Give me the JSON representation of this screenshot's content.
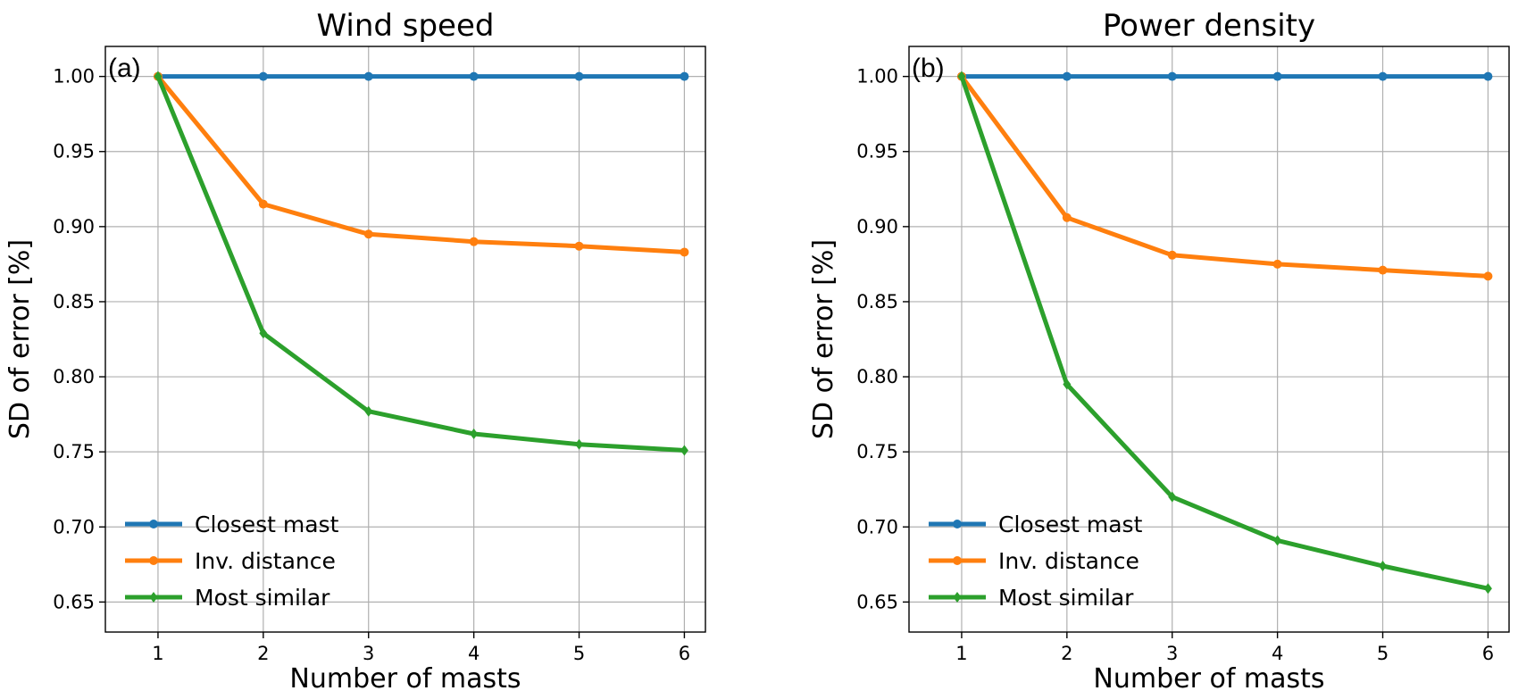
{
  "chart_data": [
    {
      "type": "line",
      "panel_label": "(a)",
      "title": "Wind speed",
      "xlabel": "Number of masts",
      "ylabel": "SD of error [%]",
      "x": [
        1,
        2,
        3,
        4,
        5,
        6
      ],
      "xlim": [
        0.5,
        6.2
      ],
      "ylim": [
        0.63,
        1.02
      ],
      "xticks": [
        "1",
        "2",
        "3",
        "4",
        "5",
        "6"
      ],
      "yticks": [
        "0.65",
        "0.70",
        "0.75",
        "0.80",
        "0.85",
        "0.90",
        "0.95",
        "1.00"
      ],
      "grid": true,
      "legend_position": "lower-left",
      "series": [
        {
          "name": "Closest mast",
          "color": "#1f77b4",
          "values": [
            1.0,
            1.0,
            1.0,
            1.0,
            1.0,
            1.0
          ]
        },
        {
          "name": "Inv. distance",
          "color": "#ff7f0e",
          "values": [
            1.0,
            0.915,
            0.895,
            0.89,
            0.887,
            0.883
          ]
        },
        {
          "name": "Most similar",
          "color": "#2ca02c",
          "values": [
            1.0,
            0.829,
            0.777,
            0.762,
            0.755,
            0.751
          ]
        }
      ]
    },
    {
      "type": "line",
      "panel_label": "(b)",
      "title": "Power density",
      "xlabel": "Number of masts",
      "ylabel": "SD of error [%]",
      "x": [
        1,
        2,
        3,
        4,
        5,
        6
      ],
      "xlim": [
        0.5,
        6.2
      ],
      "ylim": [
        0.63,
        1.02
      ],
      "xticks": [
        "1",
        "2",
        "3",
        "4",
        "5",
        "6"
      ],
      "yticks": [
        "0.65",
        "0.70",
        "0.75",
        "0.80",
        "0.85",
        "0.90",
        "0.95",
        "1.00"
      ],
      "grid": true,
      "legend_position": "lower-left",
      "series": [
        {
          "name": "Closest mast",
          "color": "#1f77b4",
          "values": [
            1.0,
            1.0,
            1.0,
            1.0,
            1.0,
            1.0
          ]
        },
        {
          "name": "Inv. distance",
          "color": "#ff7f0e",
          "values": [
            1.0,
            0.906,
            0.881,
            0.875,
            0.871,
            0.867
          ]
        },
        {
          "name": "Most similar",
          "color": "#2ca02c",
          "values": [
            1.0,
            0.795,
            0.72,
            0.691,
            0.674,
            0.659
          ]
        }
      ]
    }
  ]
}
